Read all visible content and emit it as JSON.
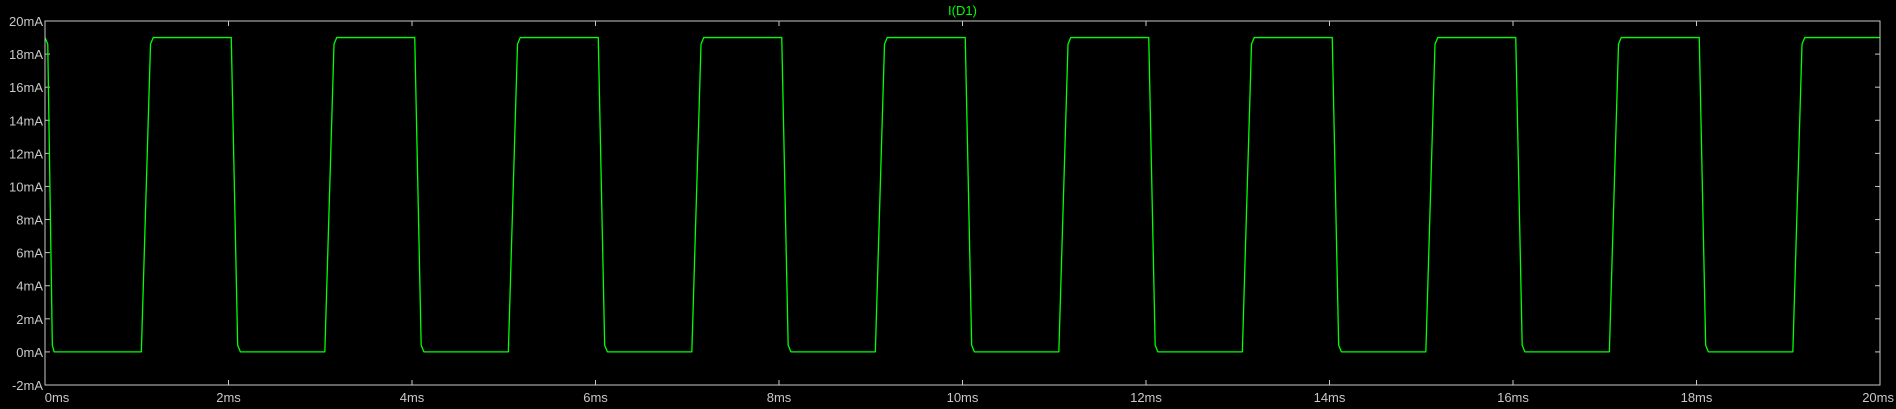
{
  "window": {
    "background": "#000000"
  },
  "chart_data": {
    "type": "line",
    "title": "",
    "xlabel": "",
    "ylabel": "",
    "xlim": [
      0,
      20
    ],
    "ylim": [
      -2,
      20
    ],
    "x_ticks": [
      0,
      2,
      4,
      6,
      8,
      10,
      12,
      14,
      16,
      18,
      20
    ],
    "x_tick_labels": [
      "0ms",
      "2ms",
      "4ms",
      "6ms",
      "8ms",
      "10ms",
      "12ms",
      "14ms",
      "16ms",
      "18ms",
      "20ms"
    ],
    "y_ticks": [
      -2,
      0,
      2,
      4,
      6,
      8,
      10,
      12,
      14,
      16,
      18,
      20
    ],
    "y_tick_labels": [
      "-2mA",
      "0mA",
      "2mA",
      "4mA",
      "6mA",
      "8mA",
      "10mA",
      "12mA",
      "14mA",
      "16mA",
      "18mA",
      "20mA"
    ],
    "grid": false,
    "series": [
      {
        "name": "I(D1)",
        "color": "#00ff00",
        "x": [
          0,
          0.03,
          0.08,
          0.1,
          1.05,
          1.15,
          1.18,
          2.03,
          2.1,
          2.13,
          3.05,
          3.15,
          3.18,
          4.03,
          4.1,
          4.13,
          5.05,
          5.15,
          5.18,
          6.03,
          6.1,
          6.13,
          7.05,
          7.15,
          7.18,
          8.03,
          8.1,
          8.13,
          9.05,
          9.15,
          9.18,
          10.03,
          10.1,
          10.13,
          11.05,
          11.15,
          11.18,
          12.03,
          12.1,
          12.13,
          13.05,
          13.15,
          13.18,
          14.03,
          14.1,
          14.13,
          15.05,
          15.15,
          15.18,
          16.03,
          16.1,
          16.13,
          17.05,
          17.15,
          17.18,
          18.03,
          18.1,
          18.13,
          19.05,
          19.15,
          19.18,
          20
        ],
        "values": [
          19,
          18.6,
          0.4,
          0,
          0,
          18.6,
          19,
          19,
          0.4,
          0,
          0,
          18.6,
          19,
          19,
          0.4,
          0,
          0,
          18.6,
          19,
          19,
          0.4,
          0,
          0,
          18.6,
          19,
          19,
          0.4,
          0,
          0,
          18.6,
          19,
          19,
          0.4,
          0,
          0,
          18.6,
          19,
          19,
          0.4,
          0,
          0,
          18.6,
          19,
          19,
          0.4,
          0,
          0,
          18.6,
          19,
          19,
          0.4,
          0,
          0,
          18.6,
          19,
          19,
          0.4,
          0,
          0,
          18.6,
          19,
          19
        ]
      }
    ],
    "colors": {
      "axis": "#c8c8c8",
      "tick_text": "#c8c8c8",
      "background": "#000000"
    }
  }
}
